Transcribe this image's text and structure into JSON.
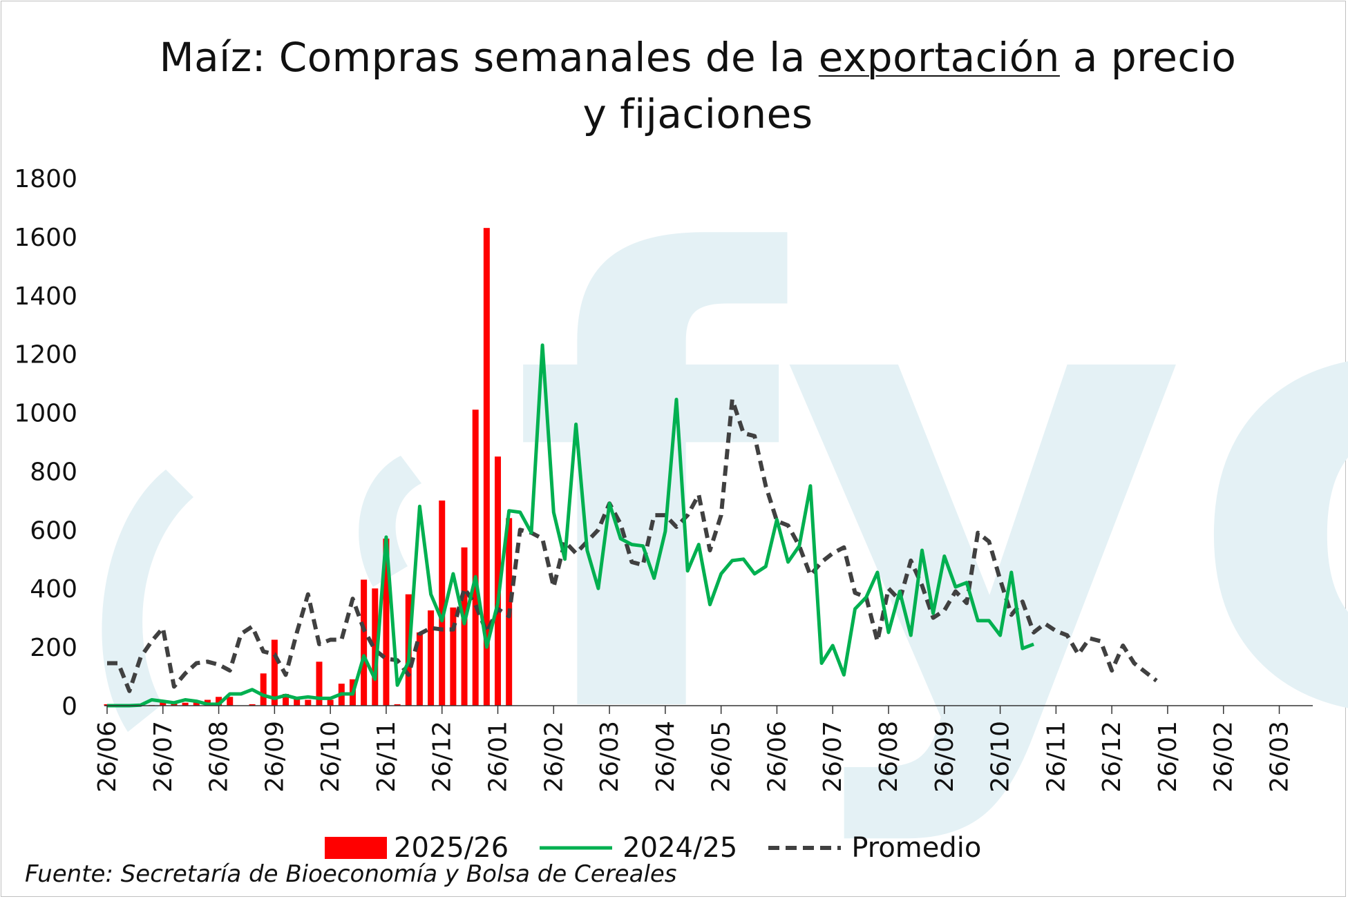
{
  "title": {
    "part1": "Maíz: Compras semanales de la ",
    "underlined": "exportación",
    "part2": " a precio y fijaciones"
  },
  "watermark": "fyo",
  "source": "Fuente: Secretaría de Bioeconomía y Bolsa de Cereales",
  "colors": {
    "series_2025_26": "#ff0000",
    "series_2024_25": "#00b050",
    "promedio": "#404040",
    "watermark": "#e4f1f5"
  },
  "chart_data": {
    "type": "bar",
    "ylim": [
      0,
      1800
    ],
    "yticks": [
      0,
      200,
      400,
      600,
      800,
      1000,
      1200,
      1400,
      1600,
      1800
    ],
    "xtick_labels": [
      "26/06",
      "26/07",
      "26/08",
      "26/09",
      "26/10",
      "26/11",
      "26/12",
      "26/01",
      "26/02",
      "26/03",
      "26/04",
      "26/05",
      "26/06",
      "26/07",
      "26/08",
      "26/09",
      "26/10",
      "26/11",
      "26/12",
      "26/01",
      "26/02",
      "26/03"
    ],
    "xtick_week_index": [
      0,
      5,
      10,
      15,
      20,
      25,
      30,
      35,
      40,
      45,
      50,
      55,
      60,
      65,
      70,
      75,
      80,
      85,
      90,
      95,
      100,
      105
    ],
    "grid": false,
    "legend_position": "bottom",
    "series": [
      {
        "name": "2025/26",
        "kind": "bar",
        "values": [
          5,
          4,
          4,
          3,
          2,
          12,
          10,
          10,
          18,
          20,
          30,
          30,
          0,
          5,
          110,
          225,
          40,
          30,
          20,
          150,
          20,
          75,
          90,
          430,
          400,
          570,
          5,
          380,
          250,
          325,
          700,
          335,
          540,
          1010,
          1630,
          850,
          640
        ]
      },
      {
        "name": "2024/25",
        "kind": "line",
        "values": [
          0,
          0,
          0,
          2,
          20,
          15,
          10,
          20,
          15,
          5,
          5,
          40,
          40,
          55,
          35,
          25,
          35,
          25,
          30,
          25,
          25,
          40,
          40,
          170,
          90,
          575,
          70,
          150,
          680,
          380,
          290,
          450,
          280,
          440,
          200,
          350,
          665,
          660,
          590,
          1230,
          660,
          500,
          960,
          530,
          400,
          690,
          570,
          550,
          545,
          435,
          595,
          1045,
          460,
          550,
          345,
          450,
          495,
          500,
          450,
          475,
          635,
          490,
          545,
          750,
          145,
          205,
          105,
          330,
          370,
          455,
          250,
          390,
          240,
          530,
          315,
          510,
          405,
          420,
          290,
          290,
          240,
          455,
          195,
          210
        ]
      },
      {
        "name": "Promedio",
        "kind": "line",
        "dashed": true,
        "values": [
          145,
          145,
          50,
          165,
          220,
          265,
          65,
          110,
          145,
          150,
          140,
          120,
          245,
          270,
          185,
          175,
          105,
          250,
          380,
          210,
          225,
          225,
          365,
          260,
          190,
          160,
          155,
          105,
          245,
          265,
          260,
          260,
          400,
          345,
          250,
          330,
          305,
          600,
          590,
          570,
          405,
          560,
          520,
          560,
          600,
          690,
          620,
          490,
          480,
          650,
          650,
          610,
          650,
          720,
          530,
          650,
          1045,
          930,
          920,
          750,
          630,
          615,
          545,
          445,
          490,
          520,
          540,
          385,
          370,
          220,
          400,
          360,
          495,
          410,
          300,
          325,
          390,
          350,
          590,
          560,
          430,
          310,
          355,
          250,
          280,
          255,
          240,
          175,
          230,
          220,
          120,
          205,
          145,
          115,
          85
        ]
      }
    ]
  }
}
